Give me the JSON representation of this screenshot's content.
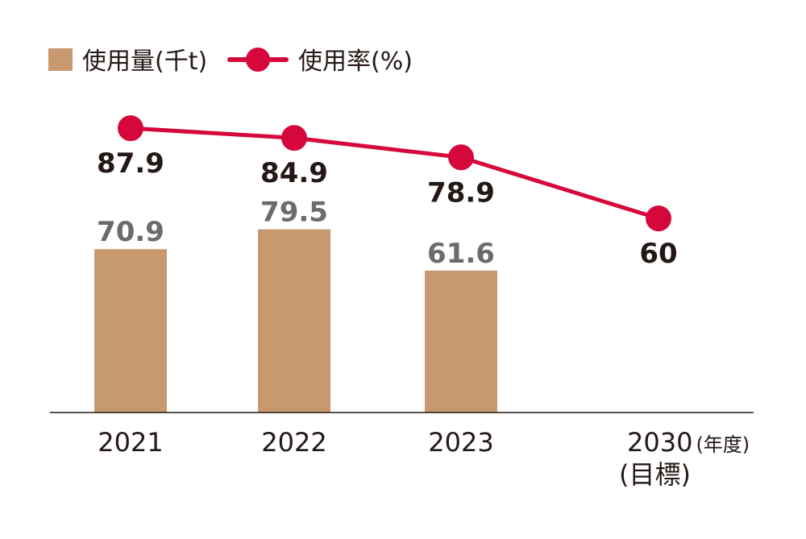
{
  "chart_data": {
    "type": "bar+line",
    "categories": [
      "2021",
      "2022",
      "2023",
      "2030"
    ],
    "category_suffix": "(年度)",
    "target_note": "(目標)",
    "series": [
      {
        "name": "使用量(千t)",
        "type": "bar",
        "values": [
          70.9,
          79.5,
          61.6,
          null
        ],
        "labels": [
          "70.9",
          "79.5",
          "61.6",
          ""
        ],
        "color": "#C8996E"
      },
      {
        "name": "使用率(%)",
        "type": "line",
        "values": [
          87.9,
          84.9,
          78.9,
          60
        ],
        "labels": [
          "87.9",
          "84.9",
          "78.9",
          "60"
        ],
        "color": "#D6083B"
      }
    ],
    "grid": false,
    "legend": "top-left"
  }
}
